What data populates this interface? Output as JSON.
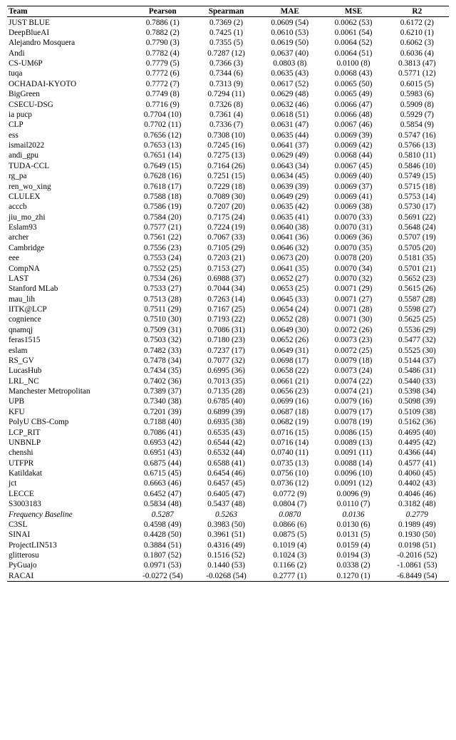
{
  "columns": [
    "Team",
    "Pearson",
    "Spearman",
    "MAE",
    "MSE",
    "R2"
  ],
  "baseline_index": 48,
  "rows": [
    {
      "team": "JUST BLUE",
      "pearson": "0.7886 (1)",
      "spearman": "0.7369 (2)",
      "mae": "0.0609 (54)",
      "mse": "0.0062 (53)",
      "r2": "0.6172 (2)"
    },
    {
      "team": "DeepBlueAI",
      "pearson": "0.7882 (2)",
      "spearman": "0.7425 (1)",
      "mae": "0.0610 (53)",
      "mse": "0.0061 (54)",
      "r2": "0.6210 (1)"
    },
    {
      "team": "Alejandro Mosquera",
      "pearson": "0.7790 (3)",
      "spearman": "0.7355 (5)",
      "mae": "0.0619 (50)",
      "mse": "0.0064 (52)",
      "r2": "0.6062 (3)"
    },
    {
      "team": "Andi",
      "pearson": "0.7782 (4)",
      "spearman": "0.7287 (12)",
      "mae": "0.0637 (40)",
      "mse": "0.0064 (51)",
      "r2": "0.6036 (4)"
    },
    {
      "team": "CS-UM6P",
      "pearson": "0.7779 (5)",
      "spearman": "0.7366 (3)",
      "mae": "0.0803 (8)",
      "mse": "0.0100 (8)",
      "r2": "0.3813 (47)"
    },
    {
      "team": "tuqa",
      "pearson": "0.7772 (6)",
      "spearman": "0.7344 (6)",
      "mae": "0.0635 (43)",
      "mse": "0.0068 (43)",
      "r2": "0.5771 (12)"
    },
    {
      "team": "OCHADAI-KYOTO",
      "pearson": "0.7772 (7)",
      "spearman": "0.7313 (9)",
      "mae": "0.0617 (52)",
      "mse": "0.0065 (50)",
      "r2": "0.6015 (5)"
    },
    {
      "team": "BigGreen",
      "pearson": "0.7749 (8)",
      "spearman": "0.7294 (11)",
      "mae": "0.0629 (48)",
      "mse": "0.0065 (49)",
      "r2": "0.5983 (6)"
    },
    {
      "team": "CSECU-DSG",
      "pearson": "0.7716 (9)",
      "spearman": "0.7326 (8)",
      "mae": "0.0632 (46)",
      "mse": "0.0066 (47)",
      "r2": "0.5909 (8)"
    },
    {
      "team": "ia pucp",
      "pearson": "0.7704 (10)",
      "spearman": "0.7361 (4)",
      "mae": "0.0618 (51)",
      "mse": "0.0066 (48)",
      "r2": "0.5929 (7)"
    },
    {
      "team": "CLP",
      "pearson": "0.7702 (11)",
      "spearman": "0.7336 (7)",
      "mae": "0.0631 (47)",
      "mse": "0.0067 (46)",
      "r2": "0.5854 (9)"
    },
    {
      "team": "ess",
      "pearson": "0.7656 (12)",
      "spearman": "0.7308 (10)",
      "mae": "0.0635 (44)",
      "mse": "0.0069 (39)",
      "r2": "0.5747 (16)"
    },
    {
      "team": "ismail2022",
      "pearson": "0.7653 (13)",
      "spearman": "0.7245 (16)",
      "mae": "0.0641 (37)",
      "mse": "0.0069 (42)",
      "r2": "0.5766 (13)"
    },
    {
      "team": "andi_gpu",
      "pearson": "0.7651 (14)",
      "spearman": "0.7275 (13)",
      "mae": "0.0629 (49)",
      "mse": "0.0068 (44)",
      "r2": "0.5810 (11)"
    },
    {
      "team": "TUDA-CCL",
      "pearson": "0.7649 (15)",
      "spearman": "0.7164 (26)",
      "mae": "0.0643 (34)",
      "mse": "0.0067 (45)",
      "r2": "0.5846 (10)"
    },
    {
      "team": "rg_pa",
      "pearson": "0.7628 (16)",
      "spearman": "0.7251 (15)",
      "mae": "0.0634 (45)",
      "mse": "0.0069 (40)",
      "r2": "0.5749 (15)"
    },
    {
      "team": "ren_wo_xing",
      "pearson": "0.7618 (17)",
      "spearman": "0.7229 (18)",
      "mae": "0.0639 (39)",
      "mse": "0.0069 (37)",
      "r2": "0.5715 (18)"
    },
    {
      "team": "CLULEX",
      "pearson": "0.7588 (18)",
      "spearman": "0.7089 (30)",
      "mae": "0.0649 (29)",
      "mse": "0.0069 (41)",
      "r2": "0.5753 (14)"
    },
    {
      "team": "acccb",
      "pearson": "0.7586 (19)",
      "spearman": "0.7207 (20)",
      "mae": "0.0635 (42)",
      "mse": "0.0069 (38)",
      "r2": "0.5730 (17)"
    },
    {
      "team": "jiu_mo_zhi",
      "pearson": "0.7584 (20)",
      "spearman": "0.7175 (24)",
      "mae": "0.0635 (41)",
      "mse": "0.0070 (33)",
      "r2": "0.5691 (22)"
    },
    {
      "team": "Eslam93",
      "pearson": "0.7577 (21)",
      "spearman": "0.7224 (19)",
      "mae": "0.0640 (38)",
      "mse": "0.0070 (31)",
      "r2": "0.5648 (24)"
    },
    {
      "team": "archer",
      "pearson": "0.7561 (22)",
      "spearman": "0.7067 (33)",
      "mae": "0.0641 (36)",
      "mse": "0.0069 (36)",
      "r2": "0.5707 (19)"
    },
    {
      "team": "Cambridge",
      "pearson": "0.7556 (23)",
      "spearman": "0.7105 (29)",
      "mae": "0.0646 (32)",
      "mse": "0.0070 (35)",
      "r2": "0.5705 (20)"
    },
    {
      "team": "eee",
      "pearson": "0.7553 (24)",
      "spearman": "0.7203 (21)",
      "mae": "0.0673 (20)",
      "mse": "0.0078 (20)",
      "r2": "0.5181 (35)"
    },
    {
      "team": "CompNA",
      "pearson": "0.7552 (25)",
      "spearman": "0.7153 (27)",
      "mae": "0.0641 (35)",
      "mse": "0.0070 (34)",
      "r2": "0.5701 (21)"
    },
    {
      "team": "LAST",
      "pearson": "0.7534 (26)",
      "spearman": "0.6988 (37)",
      "mae": "0.0652 (27)",
      "mse": "0.0070 (32)",
      "r2": "0.5652 (23)"
    },
    {
      "team": "Stanford MLab",
      "pearson": "0.7533 (27)",
      "spearman": "0.7044 (34)",
      "mae": "0.0653 (25)",
      "mse": "0.0071 (29)",
      "r2": "0.5615 (26)"
    },
    {
      "team": "mau_lih",
      "pearson": "0.7513 (28)",
      "spearman": "0.7263 (14)",
      "mae": "0.0645 (33)",
      "mse": "0.0071 (27)",
      "r2": "0.5587 (28)"
    },
    {
      "team": "IITK@LCP",
      "pearson": "0.7511 (29)",
      "spearman": "0.7167 (25)",
      "mae": "0.0654 (24)",
      "mse": "0.0071 (28)",
      "r2": "0.5598 (27)"
    },
    {
      "team": "cognience",
      "pearson": "0.7510 (30)",
      "spearman": "0.7193 (22)",
      "mae": "0.0652 (28)",
      "mse": "0.0071 (30)",
      "r2": "0.5625 (25)"
    },
    {
      "team": "qnamqj",
      "pearson": "0.7509 (31)",
      "spearman": "0.7086 (31)",
      "mae": "0.0649 (30)",
      "mse": "0.0072 (26)",
      "r2": "0.5536 (29)"
    },
    {
      "team": "feras1515",
      "pearson": "0.7503 (32)",
      "spearman": "0.7180 (23)",
      "mae": "0.0652 (26)",
      "mse": "0.0073 (23)",
      "r2": "0.5477 (32)"
    },
    {
      "team": "eslam",
      "pearson": "0.7482 (33)",
      "spearman": "0.7237 (17)",
      "mae": "0.0649 (31)",
      "mse": "0.0072 (25)",
      "r2": "0.5525 (30)"
    },
    {
      "team": "RS_GV",
      "pearson": "0.7478 (34)",
      "spearman": "0.7077 (32)",
      "mae": "0.0698 (17)",
      "mse": "0.0079 (18)",
      "r2": "0.5144 (37)"
    },
    {
      "team": "LucasHub",
      "pearson": "0.7434 (35)",
      "spearman": "0.6995 (36)",
      "mae": "0.0658 (22)",
      "mse": "0.0073 (24)",
      "r2": "0.5486 (31)"
    },
    {
      "team": "LRL_NC",
      "pearson": "0.7402 (36)",
      "spearman": "0.7013 (35)",
      "mae": "0.0661 (21)",
      "mse": "0.0074 (22)",
      "r2": "0.5440 (33)"
    },
    {
      "team": "Manchester Metropolitan",
      "pearson": "0.7389 (37)",
      "spearman": "0.7135 (28)",
      "mae": "0.0656 (23)",
      "mse": "0.0074 (21)",
      "r2": "0.5398 (34)"
    },
    {
      "team": "UPB",
      "pearson": "0.7340 (38)",
      "spearman": "0.6785 (40)",
      "mae": "0.0699 (16)",
      "mse": "0.0079 (16)",
      "r2": "0.5098 (39)"
    },
    {
      "team": "KFU",
      "pearson": "0.7201 (39)",
      "spearman": "0.6899 (39)",
      "mae": "0.0687 (18)",
      "mse": "0.0079 (17)",
      "r2": "0.5109 (38)"
    },
    {
      "team": "PolyU CBS-Comp",
      "pearson": "0.7188 (40)",
      "spearman": "0.6935 (38)",
      "mae": "0.0682 (19)",
      "mse": "0.0078 (19)",
      "r2": "0.5162 (36)"
    },
    {
      "team": "LCP_RIT",
      "pearson": "0.7086 (41)",
      "spearman": "0.6535 (43)",
      "mae": "0.0716 (15)",
      "mse": "0.0086 (15)",
      "r2": "0.4695 (40)"
    },
    {
      "team": "UNBNLP",
      "pearson": "0.6953 (42)",
      "spearman": "0.6544 (42)",
      "mae": "0.0716 (14)",
      "mse": "0.0089 (13)",
      "r2": "0.4495 (42)"
    },
    {
      "team": "chenshi",
      "pearson": "0.6951 (43)",
      "spearman": "0.6532 (44)",
      "mae": "0.0740 (11)",
      "mse": "0.0091 (11)",
      "r2": "0.4366 (44)"
    },
    {
      "team": "UTFPR",
      "pearson": "0.6875 (44)",
      "spearman": "0.6588 (41)",
      "mae": "0.0735 (13)",
      "mse": "0.0088 (14)",
      "r2": "0.4577 (41)"
    },
    {
      "team": "Katildakat",
      "pearson": "0.6715 (45)",
      "spearman": "0.6454 (46)",
      "mae": "0.0756 (10)",
      "mse": "0.0096 (10)",
      "r2": "0.4060 (45)"
    },
    {
      "team": "jct",
      "pearson": "0.6663 (46)",
      "spearman": "0.6457 (45)",
      "mae": "0.0736 (12)",
      "mse": "0.0091 (12)",
      "r2": "0.4402 (43)"
    },
    {
      "team": "LECCE",
      "pearson": "0.6452 (47)",
      "spearman": "0.6405 (47)",
      "mae": "0.0772 (9)",
      "mse": "0.0096 (9)",
      "r2": "0.4046 (46)"
    },
    {
      "team": "S3003183",
      "pearson": "0.5834 (48)",
      "spearman": "0.5437 (48)",
      "mae": "0.0804 (7)",
      "mse": "0.0110 (7)",
      "r2": "0.3182 (48)"
    },
    {
      "team": "Frequency Baseline",
      "pearson": "0.5287",
      "spearman": "0.5263",
      "mae": "0.0870",
      "mse": "0.0136",
      "r2": "0.2779"
    },
    {
      "team": "C3SL",
      "pearson": "0.4598 (49)",
      "spearman": "0.3983 (50)",
      "mae": "0.0866 (6)",
      "mse": "0.0130 (6)",
      "r2": "0.1989 (49)"
    },
    {
      "team": "SINAI",
      "pearson": "0.4428 (50)",
      "spearman": "0.3961 (51)",
      "mae": "0.0875 (5)",
      "mse": "0.0131 (5)",
      "r2": "0.1930 (50)"
    },
    {
      "team": "ProjectLIN513",
      "pearson": "0.3884 (51)",
      "spearman": "0.4316 (49)",
      "mae": "0.1019 (4)",
      "mse": "0.0159 (4)",
      "r2": "0.0198 (51)"
    },
    {
      "team": "glitterosu",
      "pearson": "0.1807 (52)",
      "spearman": "0.1516 (52)",
      "mae": "0.1024 (3)",
      "mse": "0.0194 (3)",
      "r2": "-0.2016 (52)"
    },
    {
      "team": "PyGuajo",
      "pearson": "0.0971 (53)",
      "spearman": "0.1440 (53)",
      "mae": "0.1166 (2)",
      "mse": "0.0338 (2)",
      "r2": "-1.0861 (53)"
    },
    {
      "team": "RACAI",
      "pearson": "-0.0272 (54)",
      "spearman": "-0.0268 (54)",
      "mae": "0.2777 (1)",
      "mse": "0.1270 (1)",
      "r2": "-6.8449 (54)"
    }
  ]
}
